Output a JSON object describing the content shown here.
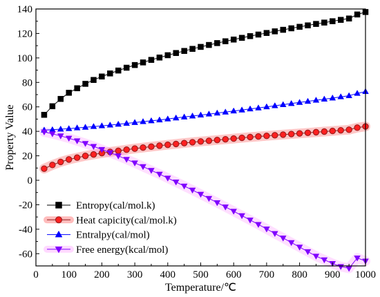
{
  "chart_data": {
    "type": "line",
    "xlabel": "Temperature/℃",
    "ylabel": "Property Value",
    "xlim": [
      0,
      1000
    ],
    "ylim": [
      -70,
      140
    ],
    "x_ticks": [
      0,
      100,
      200,
      300,
      400,
      500,
      600,
      700,
      800,
      900,
      1000
    ],
    "y_ticks": [
      -60,
      -40,
      -20,
      0,
      20,
      40,
      60,
      80,
      100,
      120,
      140
    ],
    "grid": false,
    "legend_position": "lower-left",
    "x": [
      25,
      50,
      75,
      100,
      125,
      150,
      175,
      200,
      225,
      250,
      275,
      300,
      325,
      350,
      375,
      400,
      425,
      450,
      475,
      500,
      525,
      550,
      575,
      600,
      625,
      650,
      675,
      700,
      725,
      750,
      775,
      800,
      825,
      850,
      875,
      900,
      925,
      950,
      975,
      1000
    ],
    "series": [
      {
        "name": "Entropy(cal/mol.k)",
        "marker": "square",
        "color": "#000000",
        "halo": "",
        "values": [
          53.5,
          60.5,
          66.5,
          71.5,
          75.2,
          78.8,
          82.0,
          84.8,
          87.3,
          89.7,
          92.0,
          94.2,
          96.3,
          98.4,
          100.3,
          102.2,
          104.0,
          105.7,
          107.4,
          109.0,
          110.6,
          112.1,
          113.6,
          115.0,
          116.4,
          117.8,
          119.1,
          120.4,
          121.7,
          123.0,
          124.2,
          125.4,
          126.6,
          127.8,
          128.9,
          130.0,
          131.1,
          132.2,
          135.5,
          137.5
        ]
      },
      {
        "name": "Heat capicity(cal/mol.k)",
        "marker": "circle",
        "color": "#8b1a1a",
        "halo": "#ff2020",
        "values": [
          9.5,
          12.5,
          15.0,
          17.0,
          18.5,
          19.9,
          21.1,
          22.2,
          23.2,
          24.1,
          25.0,
          25.9,
          26.7,
          27.5,
          28.3,
          29.0,
          29.7,
          30.4,
          31.1,
          31.7,
          32.3,
          32.9,
          33.5,
          34.1,
          34.7,
          35.3,
          35.8,
          36.3,
          36.8,
          37.3,
          37.8,
          38.3,
          38.8,
          39.3,
          39.8,
          40.3,
          40.8,
          41.3,
          43.0,
          44.0
        ]
      },
      {
        "name": "Entralpy(cal/mol)",
        "marker": "triangle-up",
        "color": "#0000ff",
        "halo": "",
        "values": [
          41.0,
          41.3,
          41.8,
          42.2,
          42.8,
          43.3,
          43.9,
          44.5,
          45.1,
          45.8,
          46.5,
          47.2,
          47.9,
          48.6,
          49.3,
          50.1,
          50.9,
          51.7,
          52.5,
          53.3,
          54.1,
          54.9,
          55.7,
          56.6,
          57.4,
          58.3,
          59.1,
          60.0,
          60.9,
          61.8,
          62.7,
          63.6,
          64.5,
          65.4,
          66.3,
          67.2,
          68.2,
          69.1,
          71.0,
          72.5
        ]
      },
      {
        "name": "Free energy(kcal/mol)",
        "marker": "triangle-down",
        "color": "#8000ff",
        "halo": "#ff80ff",
        "values": [
          39.5,
          38.0,
          36.3,
          34.4,
          32.3,
          30.1,
          27.7,
          25.2,
          22.6,
          19.9,
          17.1,
          14.2,
          11.2,
          8.1,
          5.0,
          1.8,
          -1.4,
          -4.7,
          -8.0,
          -11.4,
          -14.8,
          -18.3,
          -21.8,
          -25.3,
          -28.9,
          -32.5,
          -36.1,
          -39.8,
          -43.5,
          -47.2,
          -50.9,
          -54.6,
          -58.3,
          -62.0,
          -65.0,
          -68.0,
          -70.5,
          -72.0,
          -63.5,
          -66.0
        ]
      }
    ]
  }
}
